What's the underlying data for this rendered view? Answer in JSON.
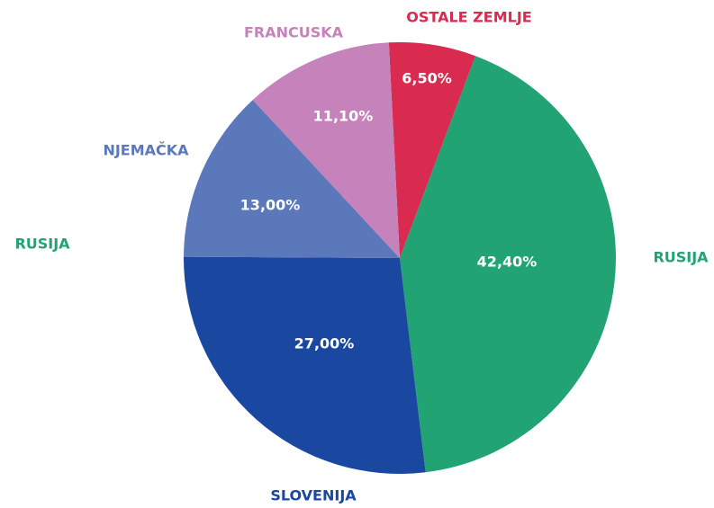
{
  "chart_data": {
    "type": "pie",
    "categories": [
      "OSTALE ZEMLJE",
      "RUSIJA",
      "SLOVENIJA",
      "NJEMAČKA",
      "FRANCUSKA"
    ],
    "values": [
      6.5,
      42.4,
      27.0,
      13.0,
      11.1
    ],
    "value_labels": [
      "6,50%",
      "42,40%",
      "27,00%",
      "13,00%",
      "11,10%"
    ],
    "colors": [
      "#d92a50",
      "#22a374",
      "#1a47a0",
      "#5b78bb",
      "#c683bb"
    ],
    "annotations": [
      {
        "text": "RUSIJA",
        "color": "#22a374"
      }
    ]
  }
}
